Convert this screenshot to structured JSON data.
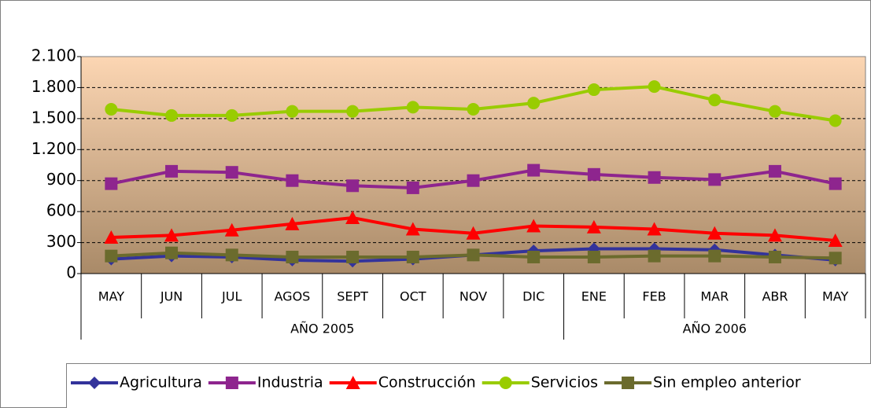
{
  "chart_data": {
    "type": "line",
    "categories": [
      "MAY",
      "JUN",
      "JUL",
      "AGOS",
      "SEPT",
      "OCT",
      "NOV",
      "DIC",
      "ENE",
      "FEB",
      "MAR",
      "ABR",
      "MAY"
    ],
    "groups": [
      {
        "label": "AÑO 2005",
        "span": 8
      },
      {
        "label": "AÑO 2006",
        "span": 5
      }
    ],
    "ylim": [
      0,
      2100
    ],
    "yticks": [
      0,
      300,
      600,
      900,
      {
        "value": 1200,
        "label": "1.200"
      },
      {
        "value": 1500,
        "label": "1.500"
      },
      {
        "value": 1800,
        "label": "1.800"
      },
      {
        "value": 2100,
        "label": "2.100"
      }
    ],
    "grid": true,
    "legend": "bottom",
    "series": [
      {
        "name": "Agricultura",
        "color": "#33339b",
        "marker": "diamond",
        "values": [
          140,
          170,
          160,
          130,
          120,
          140,
          180,
          220,
          240,
          240,
          230,
          180,
          130
        ]
      },
      {
        "name": "Industria",
        "color": "#8e258e",
        "marker": "square",
        "values": [
          870,
          990,
          980,
          900,
          850,
          830,
          900,
          1000,
          960,
          930,
          910,
          990,
          870
        ]
      },
      {
        "name": "Construcción",
        "color": "#ff0000",
        "marker": "triangle",
        "values": [
          350,
          370,
          420,
          480,
          540,
          430,
          390,
          460,
          450,
          430,
          390,
          370,
          320
        ]
      },
      {
        "name": "Servicios",
        "color": "#99cc00",
        "marker": "circle",
        "values": [
          1590,
          1530,
          1530,
          1570,
          1570,
          1610,
          1590,
          1650,
          1780,
          1810,
          1680,
          1570,
          1480
        ]
      },
      {
        "name": "Sin empleo anterior",
        "color": "#6b6b2d",
        "marker": "square",
        "values": [
          170,
          200,
          180,
          160,
          160,
          160,
          180,
          160,
          160,
          170,
          170,
          160,
          150
        ]
      }
    ]
  }
}
